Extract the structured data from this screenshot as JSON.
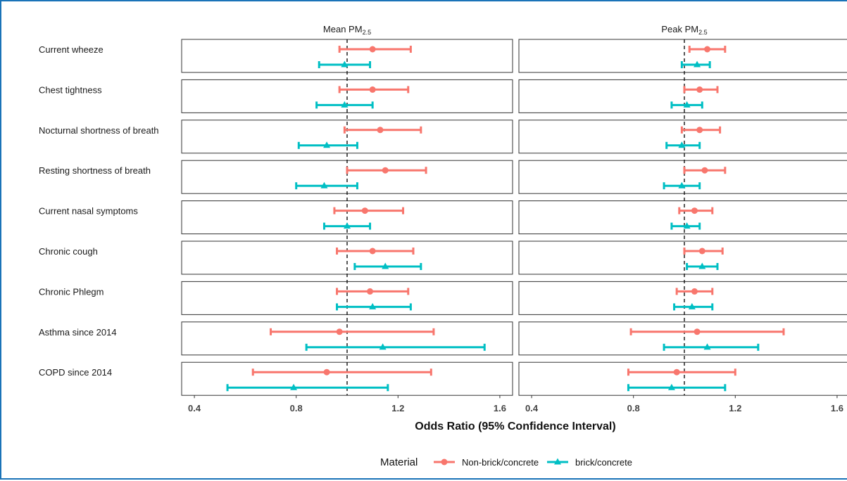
{
  "chart_data": {
    "type": "forest",
    "xlabel": "Odds Ratio (95% Confidence Interval)",
    "xlim": [
      0.35,
      1.65
    ],
    "xticks": [
      0.4,
      0.8,
      1.2,
      1.6
    ],
    "tick_labels": [
      "0.4",
      "0.8",
      "1.2",
      "1.6"
    ],
    "reference_line": 1.0,
    "rows": [
      "Current wheeze",
      "Chest tightness",
      "Nocturnal shortness of breath",
      "Resting shortness of breath",
      "Current nasal symptoms",
      "Chronic cough",
      "Chronic Phlegm",
      "Asthma since 2014",
      "COPD since 2014"
    ],
    "legend": {
      "title": "Material",
      "placement": "bottom",
      "items": [
        {
          "name": "Non-brick/concrete",
          "color": "#F8766D",
          "shape": "circle"
        },
        {
          "name": "brick/concrete",
          "color": "#00BFC4",
          "shape": "triangle"
        }
      ]
    },
    "panels": [
      {
        "title_main": "Mean PM",
        "title_sub": "2.5",
        "series": [
          {
            "name": "Non-brick/concrete",
            "or": [
              1.1,
              1.1,
              1.13,
              1.15,
              1.07,
              1.1,
              1.09,
              0.97,
              0.92
            ],
            "lower": [
              0.97,
              0.97,
              0.99,
              1.0,
              0.95,
              0.96,
              0.96,
              0.7,
              0.63
            ],
            "upper": [
              1.25,
              1.24,
              1.29,
              1.31,
              1.22,
              1.26,
              1.24,
              1.34,
              1.33
            ]
          },
          {
            "name": "brick/concrete",
            "or": [
              0.99,
              0.99,
              0.92,
              0.91,
              1.0,
              1.15,
              1.1,
              1.14,
              0.79
            ],
            "lower": [
              0.89,
              0.88,
              0.81,
              0.8,
              0.91,
              1.03,
              0.96,
              0.84,
              0.53
            ],
            "upper": [
              1.09,
              1.1,
              1.04,
              1.04,
              1.09,
              1.29,
              1.25,
              1.54,
              1.16
            ]
          }
        ]
      },
      {
        "title_main": "Peak PM",
        "title_sub": "2.5",
        "series": [
          {
            "name": "Non-brick/concrete",
            "or": [
              1.09,
              1.06,
              1.06,
              1.08,
              1.04,
              1.07,
              1.04,
              1.05,
              0.97
            ],
            "lower": [
              1.02,
              1.0,
              0.99,
              1.0,
              0.98,
              1.0,
              0.97,
              0.79,
              0.78
            ],
            "upper": [
              1.16,
              1.13,
              1.14,
              1.16,
              1.11,
              1.15,
              1.11,
              1.39,
              1.2
            ]
          },
          {
            "name": "brick/concrete",
            "or": [
              1.05,
              1.01,
              0.99,
              0.99,
              1.01,
              1.07,
              1.03,
              1.09,
              0.95
            ],
            "lower": [
              0.99,
              0.95,
              0.93,
              0.92,
              0.95,
              1.01,
              0.96,
              0.92,
              0.78
            ],
            "upper": [
              1.1,
              1.07,
              1.06,
              1.06,
              1.06,
              1.13,
              1.11,
              1.29,
              1.16
            ]
          }
        ]
      }
    ]
  }
}
